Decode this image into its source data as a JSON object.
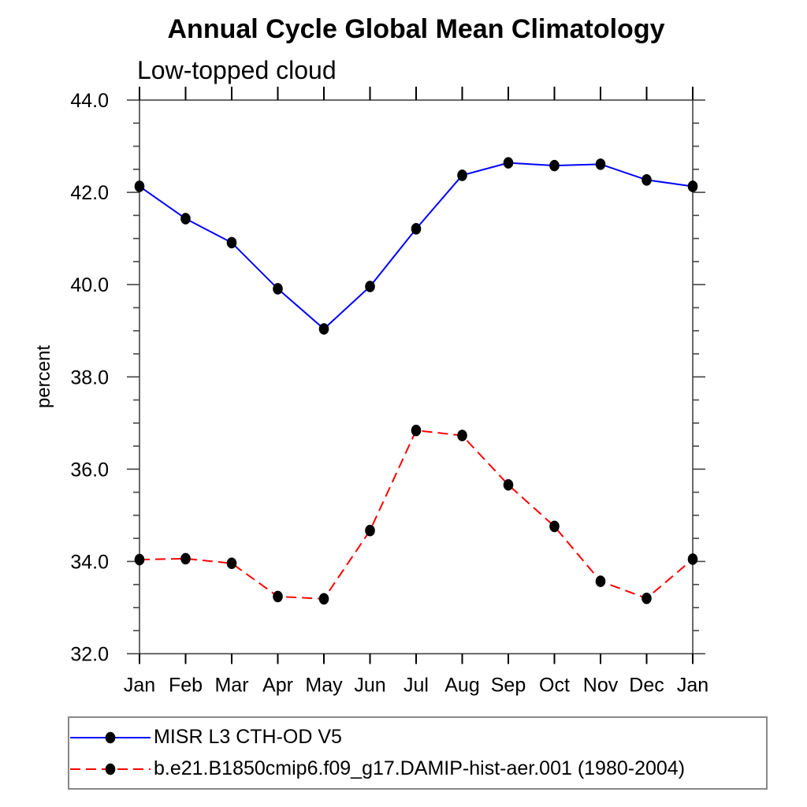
{
  "chart_data": {
    "type": "line",
    "title": "Annual Cycle Global Mean Climatology",
    "subtitle": "Low-topped cloud",
    "xlabel": "",
    "ylabel": "percent",
    "categories": [
      "Jan",
      "Feb",
      "Mar",
      "Apr",
      "May",
      "Jun",
      "Jul",
      "Aug",
      "Sep",
      "Oct",
      "Nov",
      "Dec",
      "Jan"
    ],
    "series": [
      {
        "name": "MISR L3 CTH-OD V5",
        "color": "#0000ff",
        "style": "solid",
        "marker": "filled-circle",
        "marker_color": "#000000",
        "values": [
          42.13,
          41.43,
          40.91,
          39.91,
          39.04,
          39.96,
          41.21,
          42.37,
          42.64,
          42.58,
          42.61,
          42.27,
          42.13
        ]
      },
      {
        "name": "b.e21.B1850cmip6.f09_g17.DAMIP-hist-aer.001 (1980-2004)",
        "color": "#ff0000",
        "style": "dashed",
        "marker": "filled-circle",
        "marker_color": "#000000",
        "values": [
          34.04,
          34.06,
          33.96,
          33.24,
          33.19,
          34.67,
          36.84,
          36.73,
          35.66,
          34.76,
          33.57,
          33.2,
          34.05
        ]
      }
    ],
    "ylim": [
      32.0,
      44.0
    ],
    "ytick_major_step": 2.0,
    "ytick_minor_step": 0.5,
    "ytick_labels": [
      "32.0",
      "34.0",
      "36.0",
      "38.0",
      "40.0",
      "42.0",
      "44.0"
    ],
    "grid": false,
    "legend_position": "bottom-left-box",
    "axis_color": "#444444",
    "text_color": "#000000"
  }
}
